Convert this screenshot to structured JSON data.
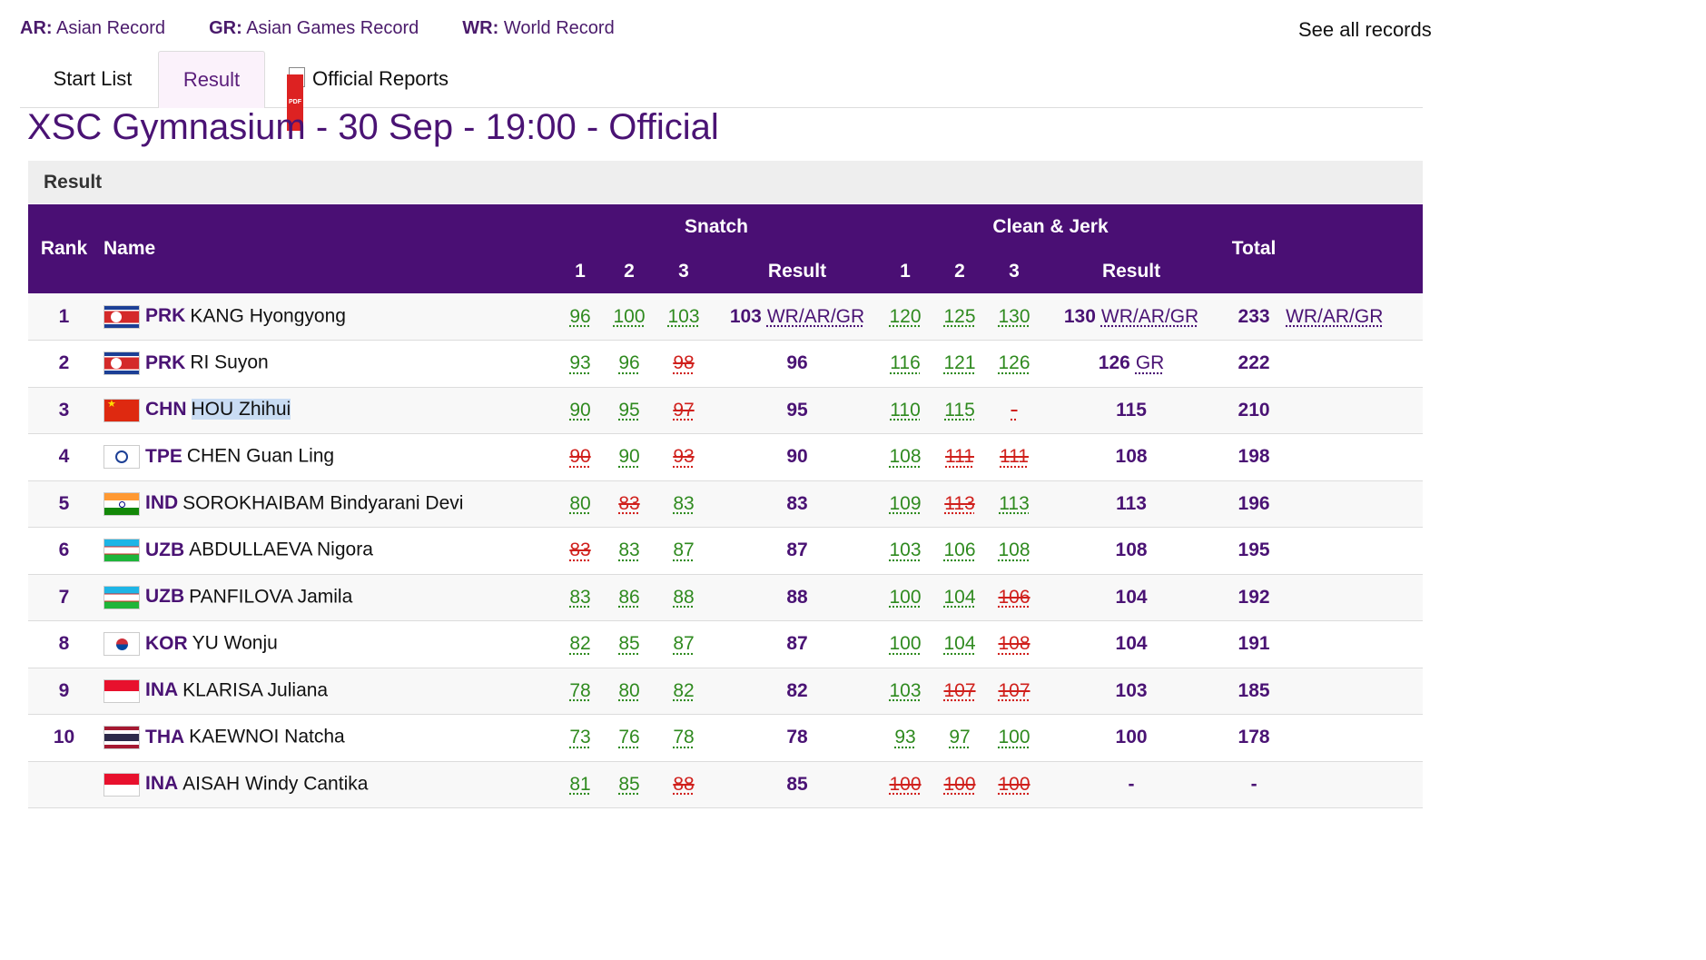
{
  "legend": [
    {
      "code": "AR:",
      "label": "Asian Record"
    },
    {
      "code": "GR:",
      "label": "Asian Games Record"
    },
    {
      "code": "WR:",
      "label": "World Record"
    }
  ],
  "see_all": "See all records",
  "tabs": {
    "start_list": "Start List",
    "result": "Result",
    "official_reports": "Official Reports"
  },
  "venue_title": "XSC Gymnasium - 30 Sep - 19:00 - Official",
  "section_title": "Result",
  "headers": {
    "rank": "Rank",
    "name": "Name",
    "snatch": "Snatch",
    "clean_jerk": "Clean & Jerk",
    "a1": "1",
    "a2": "2",
    "a3": "3",
    "result": "Result",
    "total": "Total"
  },
  "colors": {
    "brand": "#4a0f74",
    "good": "#2f8a1f",
    "bad": "#d0201c"
  },
  "rows": [
    {
      "rank": "1",
      "flag": "prk",
      "noc": "PRK",
      "athlete": "KANG Hyongyong",
      "s": [
        [
          "96",
          true
        ],
        [
          "100",
          true
        ],
        [
          "103",
          true
        ]
      ],
      "s_res": "103",
      "s_rec": "WR/AR/GR",
      "c": [
        [
          "120",
          true
        ],
        [
          "125",
          true
        ],
        [
          "130",
          true
        ]
      ],
      "c_res": "130",
      "c_rec": "WR/AR/GR",
      "total": "233",
      "t_rec": "WR/AR/GR"
    },
    {
      "rank": "2",
      "flag": "prk",
      "noc": "PRK",
      "athlete": "RI Suyon",
      "s": [
        [
          "93",
          true
        ],
        [
          "96",
          true
        ],
        [
          "98",
          false
        ]
      ],
      "s_res": "96",
      "s_rec": "",
      "c": [
        [
          "116",
          true
        ],
        [
          "121",
          true
        ],
        [
          "126",
          true
        ]
      ],
      "c_res": "126",
      "c_rec": "GR",
      "total": "222",
      "t_rec": ""
    },
    {
      "rank": "3",
      "flag": "chn",
      "noc": "CHN",
      "athlete": "HOU Zhihui",
      "highlight": true,
      "s": [
        [
          "90",
          true
        ],
        [
          "95",
          true
        ],
        [
          "97",
          false
        ]
      ],
      "s_res": "95",
      "s_rec": "",
      "c": [
        [
          "110",
          true
        ],
        [
          "115",
          true
        ],
        [
          "-",
          false
        ]
      ],
      "c_res": "115",
      "c_rec": "",
      "total": "210",
      "t_rec": ""
    },
    {
      "rank": "4",
      "flag": "tpe",
      "noc": "TPE",
      "athlete": "CHEN Guan Ling",
      "s": [
        [
          "90",
          false
        ],
        [
          "90",
          true
        ],
        [
          "93",
          false
        ]
      ],
      "s_res": "90",
      "s_rec": "",
      "c": [
        [
          "108",
          true
        ],
        [
          "111",
          false
        ],
        [
          "111",
          false
        ]
      ],
      "c_res": "108",
      "c_rec": "",
      "total": "198",
      "t_rec": ""
    },
    {
      "rank": "5",
      "flag": "ind",
      "noc": "IND",
      "athlete": "SOROKHAIBAM Bindyarani Devi",
      "s": [
        [
          "80",
          true
        ],
        [
          "83",
          false
        ],
        [
          "83",
          true
        ]
      ],
      "s_res": "83",
      "s_rec": "",
      "c": [
        [
          "109",
          true
        ],
        [
          "113",
          false
        ],
        [
          "113",
          true
        ]
      ],
      "c_res": "113",
      "c_rec": "",
      "total": "196",
      "t_rec": ""
    },
    {
      "rank": "6",
      "flag": "uzb",
      "noc": "UZB",
      "athlete": "ABDULLAEVA Nigora",
      "s": [
        [
          "83",
          false
        ],
        [
          "83",
          true
        ],
        [
          "87",
          true
        ]
      ],
      "s_res": "87",
      "s_rec": "",
      "c": [
        [
          "103",
          true
        ],
        [
          "106",
          true
        ],
        [
          "108",
          true
        ]
      ],
      "c_res": "108",
      "c_rec": "",
      "total": "195",
      "t_rec": ""
    },
    {
      "rank": "7",
      "flag": "uzb",
      "noc": "UZB",
      "athlete": "PANFILOVA Jamila",
      "s": [
        [
          "83",
          true
        ],
        [
          "86",
          true
        ],
        [
          "88",
          true
        ]
      ],
      "s_res": "88",
      "s_rec": "",
      "c": [
        [
          "100",
          true
        ],
        [
          "104",
          true
        ],
        [
          "106",
          false
        ]
      ],
      "c_res": "104",
      "c_rec": "",
      "total": "192",
      "t_rec": ""
    },
    {
      "rank": "8",
      "flag": "kor",
      "noc": "KOR",
      "athlete": "YU Wonju",
      "s": [
        [
          "82",
          true
        ],
        [
          "85",
          true
        ],
        [
          "87",
          true
        ]
      ],
      "s_res": "87",
      "s_rec": "",
      "c": [
        [
          "100",
          true
        ],
        [
          "104",
          true
        ],
        [
          "108",
          false
        ]
      ],
      "c_res": "104",
      "c_rec": "",
      "total": "191",
      "t_rec": ""
    },
    {
      "rank": "9",
      "flag": "ina",
      "noc": "INA",
      "athlete": "KLARISA Juliana",
      "s": [
        [
          "78",
          true
        ],
        [
          "80",
          true
        ],
        [
          "82",
          true
        ]
      ],
      "s_res": "82",
      "s_rec": "",
      "c": [
        [
          "103",
          true
        ],
        [
          "107",
          false
        ],
        [
          "107",
          false
        ]
      ],
      "c_res": "103",
      "c_rec": "",
      "total": "185",
      "t_rec": ""
    },
    {
      "rank": "10",
      "flag": "tha",
      "noc": "THA",
      "athlete": "KAEWNOI Natcha",
      "s": [
        [
          "73",
          true
        ],
        [
          "76",
          true
        ],
        [
          "78",
          true
        ]
      ],
      "s_res": "78",
      "s_rec": "",
      "c": [
        [
          "93",
          true
        ],
        [
          "97",
          true
        ],
        [
          "100",
          true
        ]
      ],
      "c_res": "100",
      "c_rec": "",
      "total": "178",
      "t_rec": ""
    },
    {
      "rank": "",
      "flag": "ina",
      "noc": "INA",
      "athlete": "AISAH Windy Cantika",
      "s": [
        [
          "81",
          true
        ],
        [
          "85",
          true
        ],
        [
          "88",
          false
        ]
      ],
      "s_res": "85",
      "s_rec": "",
      "c": [
        [
          "100",
          false
        ],
        [
          "100",
          false
        ],
        [
          "100",
          false
        ]
      ],
      "c_res": "-",
      "c_rec": "",
      "total": "-",
      "t_rec": ""
    }
  ]
}
